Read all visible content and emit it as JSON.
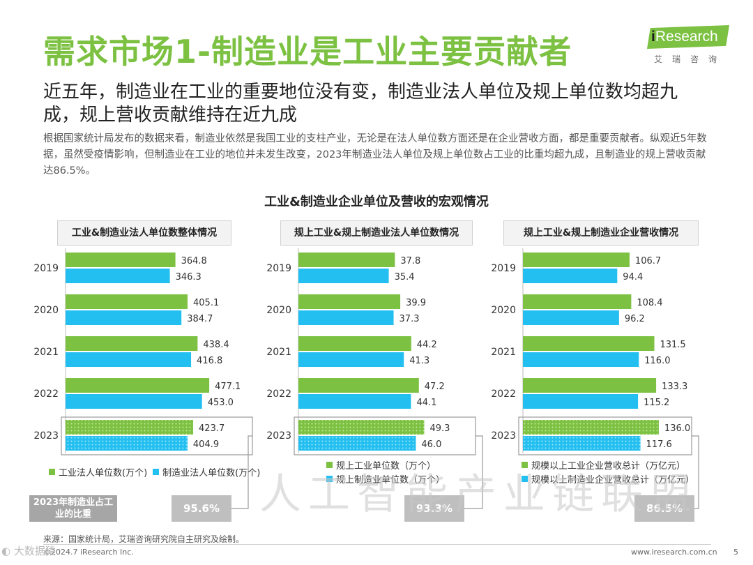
{
  "title": "需求市场1-制造业是工业主要贡献者",
  "logo": {
    "i": "i",
    "brand": "Research",
    "sub": "艾瑞咨询"
  },
  "subtitle": "近五年，制造业在工业的重要地位没有变，制造业法人单位及规上单位数均超九成，规上营收贡献维持在近九成",
  "body": "根据国家统计局发布的数据来看，制造业依然是我国工业的支柱产业，无论是在法人单位数方面还是在企业营收方面，都是重要贡献者。纵观近5年数据，虽然受疫情影响，但制造业在工业的地位并未发生改变，2023年制造业法人单位及规上单位数占工业的比重均超九成，且制造业的规上营收贡献达86.5%。",
  "chart_title": "工业&制造业企业单位及营收的宏观情况",
  "colors": {
    "green": "#7cc142",
    "blue": "#23bff0",
    "grey_box": "#bfbfbf",
    "title_green": "#7cc142"
  },
  "ratio_label": "2023年制造业占工业的比重",
  "watermark": "人工智能产业链联盟",
  "corner_mark": "◐ 大数据猿",
  "source": "来源：国家统计局，艾瑞咨询研究院自主研究及绘制。",
  "copyright": "©2024.7 iResearch Inc.",
  "site": "www.iresearch.com.cn",
  "page_number": "5",
  "chart_data": [
    {
      "type": "bar",
      "orientation": "horizontal",
      "title": "工业&制造业法人单位数整体情况",
      "categories": [
        "2019",
        "2020",
        "2021",
        "2022",
        "2023"
      ],
      "series": [
        {
          "name": "工业法人单位数(万个)",
          "values": [
            364.8,
            405.1,
            438.4,
            477.1,
            423.7
          ]
        },
        {
          "name": "制造业法人单位数(万个)",
          "values": [
            346.3,
            384.7,
            416.8,
            453.0,
            404.9
          ]
        }
      ],
      "labels": [
        [
          "364.8",
          "405.1",
          "438.4",
          "477.1",
          "423.7"
        ],
        [
          "346.3",
          "384.7",
          "416.8",
          "453.0",
          "404.9"
        ]
      ],
      "xlim": [
        0,
        500
      ],
      "highlight_category": "2023",
      "ratio": "95.6%",
      "legend_layout": "row"
    },
    {
      "type": "bar",
      "orientation": "horizontal",
      "title": "规上工业&规上制造业法人单位数情况",
      "categories": [
        "2019",
        "2020",
        "2021",
        "2022",
        "2023"
      ],
      "series": [
        {
          "name": "规上工业单位数（万个）",
          "values": [
            37.8,
            39.9,
            44.2,
            47.2,
            49.3
          ]
        },
        {
          "name": "规上制造业单位数（万个）",
          "values": [
            35.4,
            37.3,
            41.3,
            44.1,
            46.0
          ]
        }
      ],
      "labels": [
        [
          "37.8",
          "39.9",
          "44.2",
          "47.2",
          "49.3"
        ],
        [
          "35.4",
          "37.3",
          "41.3",
          "44.1",
          "46.0"
        ]
      ],
      "xlim": [
        0,
        56
      ],
      "highlight_category": "2023",
      "ratio": "93.3%",
      "legend_layout": "column"
    },
    {
      "type": "bar",
      "orientation": "horizontal",
      "title": "规上工业&规上制造业企业营收情况",
      "categories": [
        "2019",
        "2020",
        "2021",
        "2022",
        "2023"
      ],
      "series": [
        {
          "name": "规模以上工业企业营收总计（万亿元）",
          "values": [
            106.7,
            108.4,
            131.5,
            133.3,
            136.0
          ]
        },
        {
          "name": "规模以上制造业企业营收总计（万亿元）",
          "values": [
            94.4,
            96.2,
            116.0,
            115.2,
            117.6
          ]
        }
      ],
      "labels": [
        [
          "106.7",
          "108.4",
          "131.5",
          "133.3",
          "136.0"
        ],
        [
          "94.4",
          "96.2",
          "116.0",
          "115.2",
          "117.6"
        ]
      ],
      "xlim": [
        0,
        150
      ],
      "highlight_category": "2023",
      "ratio": "86.5%",
      "legend_layout": "column"
    }
  ]
}
